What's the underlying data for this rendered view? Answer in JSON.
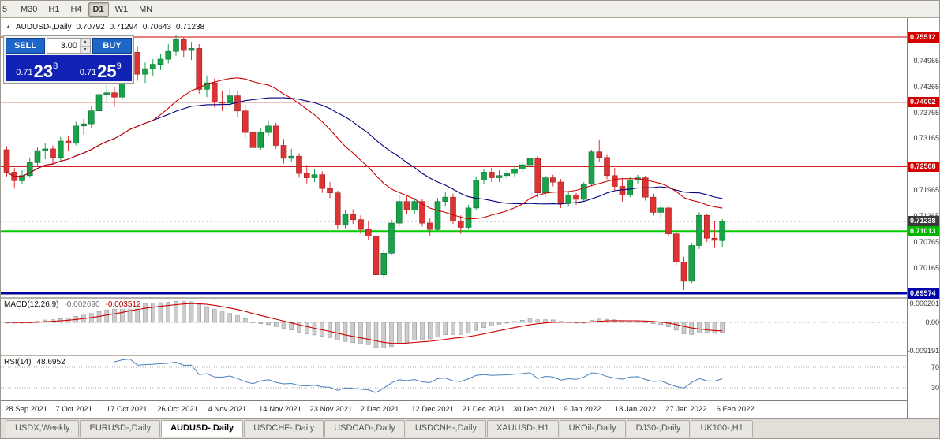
{
  "toolbar": {
    "timeframes": [
      "5",
      "M30",
      "H1",
      "H4",
      "D1",
      "W1",
      "MN"
    ],
    "active": "D1"
  },
  "chart_header": {
    "symbol": "AUDUSD-,Daily",
    "open": "0.70792",
    "high": "0.71294",
    "low": "0.70643",
    "close": "0.71238"
  },
  "trade_panel": {
    "sell_label": "SELL",
    "buy_label": "BUY",
    "volume": "3.00",
    "sell_price": {
      "prefix": "0.71",
      "big": "23",
      "sup": "8"
    },
    "buy_price": {
      "prefix": "0.71",
      "big": "25",
      "sup": "9"
    }
  },
  "indicators": {
    "macd_name": "MACD(12,26,9)",
    "macd_values": [
      "-0.002690",
      "-0.003512"
    ],
    "macd_axis": [
      "0.006201",
      "0.00",
      "-0.009191"
    ],
    "rsi_name": "RSI(14)",
    "rsi_value": "48.6952",
    "rsi_axis": [
      "70",
      "30"
    ]
  },
  "price_axis": {
    "ticks": [
      "0.74965",
      "0.74365",
      "0.73765",
      "0.73165",
      "0.71965",
      "0.71365",
      "0.70765",
      "0.70165"
    ],
    "badges": [
      {
        "value": "0.75512",
        "color": "#d40000"
      },
      {
        "value": "0.74002",
        "color": "#d40000"
      },
      {
        "value": "0.72508",
        "color": "#d40000"
      },
      {
        "value": "0.71238",
        "color": "#3a3a3a"
      },
      {
        "value": "0.71013",
        "color": "#00b400"
      },
      {
        "value": "0.69574",
        "color": "#0000a8"
      }
    ]
  },
  "date_axis": [
    "28 Sep 2021",
    "7 Oct 2021",
    "17 Oct 2021",
    "26 Oct 2021",
    "4 Nov 2021",
    "14 Nov 2021",
    "23 Nov 2021",
    "2 Dec 2021",
    "12 Dec 2021",
    "21 Dec 2021",
    "30 Dec 2021",
    "9 Jan 2022",
    "18 Jan 2022",
    "27 Jan 2022",
    "6 Feb 2022"
  ],
  "tab_bar": {
    "tabs": [
      "USDX,Weekly",
      "EURUSD-,Daily",
      "AUDUSD-,Daily",
      "USDCHF-,Daily",
      "USDCAD-,Daily",
      "USDCNH-,Daily",
      "XAUUSD-,H1",
      "UKOil-,Daily",
      "DJ30-,Daily",
      "UK100-,H1"
    ],
    "active": "AUDUSD-,Daily"
  },
  "chart_data": {
    "type": "candlestick",
    "symbol": "AUDUSD",
    "timeframe": "Daily",
    "title": "AUDUSD-,Daily",
    "current_price": 0.71238,
    "ohlc_current": {
      "open": 0.70792,
      "high": 0.71294,
      "low": 0.70643,
      "close": 0.71238
    },
    "ylim": [
      0.694,
      0.7595
    ],
    "hlines": [
      {
        "price": 0.75512,
        "color": "#cc0000",
        "width": 1
      },
      {
        "price": 0.74002,
        "color": "#cc0000",
        "width": 1
      },
      {
        "price": 0.72508,
        "color": "#cc0000",
        "width": 1
      },
      {
        "price": 0.71013,
        "color": "#00cc00",
        "width": 2
      },
      {
        "price": 0.69574,
        "color": "#0000a0",
        "width": 3
      }
    ],
    "ma_fast_period": 20,
    "ma_slow_period": 30,
    "indicators": [
      {
        "name": "MACD",
        "params": [
          12,
          26,
          9
        ],
        "values": [
          -0.00269,
          -0.003512
        ],
        "axis_range": [
          0.006201,
          -0.009191
        ]
      },
      {
        "name": "RSI",
        "params": [
          14
        ],
        "value": 48.6952,
        "levels": [
          70,
          30
        ]
      }
    ],
    "colors": {
      "up": "#18a348",
      "down": "#dd3333",
      "ma_fast": "#cc0000",
      "ma_slow": "#000080",
      "macd_hist": "#cccccc",
      "macd_signal": "#cc0000",
      "rsi_line": "#4a7ebb"
    },
    "candles": [
      [
        0.729,
        0.7298,
        0.7228,
        0.7238
      ],
      [
        0.7238,
        0.7248,
        0.72,
        0.7218
      ],
      [
        0.7218,
        0.7242,
        0.721,
        0.723
      ],
      [
        0.723,
        0.7272,
        0.7225,
        0.726
      ],
      [
        0.726,
        0.7295,
        0.7252,
        0.7288
      ],
      [
        0.7288,
        0.7305,
        0.7268,
        0.7292
      ],
      [
        0.7292,
        0.73,
        0.7255,
        0.7272
      ],
      [
        0.7272,
        0.732,
        0.7265,
        0.731
      ],
      [
        0.731,
        0.7322,
        0.7288,
        0.7305
      ],
      [
        0.7305,
        0.7355,
        0.73,
        0.7345
      ],
      [
        0.7345,
        0.7362,
        0.7325,
        0.735
      ],
      [
        0.735,
        0.7392,
        0.734,
        0.738
      ],
      [
        0.738,
        0.743,
        0.7372,
        0.7418
      ],
      [
        0.7418,
        0.744,
        0.74,
        0.7422
      ],
      [
        0.7422,
        0.7435,
        0.739,
        0.7412
      ],
      [
        0.7412,
        0.7485,
        0.7405,
        0.7476
      ],
      [
        0.7476,
        0.7525,
        0.747,
        0.7516
      ],
      [
        0.7516,
        0.753,
        0.745,
        0.7465
      ],
      [
        0.7465,
        0.7492,
        0.7445,
        0.7478
      ],
      [
        0.7478,
        0.75,
        0.7462,
        0.7488
      ],
      [
        0.7488,
        0.7512,
        0.7475,
        0.75
      ],
      [
        0.75,
        0.7535,
        0.749,
        0.7518
      ],
      [
        0.7518,
        0.7555,
        0.7508,
        0.7545
      ],
      [
        0.7545,
        0.7552,
        0.7505,
        0.752
      ],
      [
        0.752,
        0.754,
        0.7498,
        0.7525
      ],
      [
        0.7525,
        0.7535,
        0.742,
        0.743
      ],
      [
        0.743,
        0.7462,
        0.7412,
        0.7445
      ],
      [
        0.7445,
        0.7455,
        0.7388,
        0.74
      ],
      [
        0.74,
        0.7425,
        0.738,
        0.7398
      ],
      [
        0.7398,
        0.7432,
        0.739,
        0.7415
      ],
      [
        0.7415,
        0.7428,
        0.7365,
        0.738
      ],
      [
        0.738,
        0.7395,
        0.7318,
        0.733
      ],
      [
        0.733,
        0.7345,
        0.7288,
        0.7295
      ],
      [
        0.7295,
        0.734,
        0.729,
        0.733
      ],
      [
        0.733,
        0.7358,
        0.7322,
        0.7345
      ],
      [
        0.7345,
        0.7352,
        0.7292,
        0.73
      ],
      [
        0.73,
        0.7315,
        0.7258,
        0.727
      ],
      [
        0.727,
        0.7292,
        0.7262,
        0.7275
      ],
      [
        0.7275,
        0.7282,
        0.7225,
        0.7235
      ],
      [
        0.7235,
        0.7255,
        0.7212,
        0.7225
      ],
      [
        0.7225,
        0.7245,
        0.7215,
        0.7232
      ],
      [
        0.7232,
        0.724,
        0.719,
        0.72
      ],
      [
        0.72,
        0.7215,
        0.7178,
        0.719
      ],
      [
        0.719,
        0.7195,
        0.7105,
        0.7115
      ],
      [
        0.7115,
        0.715,
        0.7108,
        0.714
      ],
      [
        0.714,
        0.7152,
        0.7118,
        0.7128
      ],
      [
        0.7128,
        0.7138,
        0.7095,
        0.7105
      ],
      [
        0.7105,
        0.7125,
        0.708,
        0.709
      ],
      [
        0.709,
        0.7095,
        0.6995,
        0.7
      ],
      [
        0.7,
        0.7058,
        0.6992,
        0.705
      ],
      [
        0.705,
        0.7128,
        0.7045,
        0.712
      ],
      [
        0.712,
        0.7185,
        0.7112,
        0.717
      ],
      [
        0.717,
        0.7182,
        0.714,
        0.715
      ],
      [
        0.715,
        0.7178,
        0.7142,
        0.717
      ],
      [
        0.717,
        0.7175,
        0.7112,
        0.712
      ],
      [
        0.712,
        0.7132,
        0.709,
        0.7105
      ],
      [
        0.7105,
        0.7178,
        0.71,
        0.717
      ],
      [
        0.717,
        0.7192,
        0.7158,
        0.718
      ],
      [
        0.718,
        0.7188,
        0.7118,
        0.7125
      ],
      [
        0.7125,
        0.7138,
        0.7095,
        0.711
      ],
      [
        0.711,
        0.7162,
        0.7105,
        0.7155
      ],
      [
        0.7155,
        0.7228,
        0.715,
        0.722
      ],
      [
        0.722,
        0.7245,
        0.721,
        0.7238
      ],
      [
        0.7238,
        0.7248,
        0.7215,
        0.7225
      ],
      [
        0.7225,
        0.7242,
        0.7215,
        0.723
      ],
      [
        0.723,
        0.7242,
        0.7222,
        0.7235
      ],
      [
        0.7235,
        0.7252,
        0.7228,
        0.7245
      ],
      [
        0.7245,
        0.7262,
        0.7238,
        0.7255
      ],
      [
        0.7255,
        0.7278,
        0.7248,
        0.727
      ],
      [
        0.727,
        0.7275,
        0.718,
        0.719
      ],
      [
        0.719,
        0.723,
        0.7182,
        0.7225
      ],
      [
        0.7225,
        0.7232,
        0.7205,
        0.7215
      ],
      [
        0.7215,
        0.7222,
        0.7155,
        0.7165
      ],
      [
        0.7165,
        0.7192,
        0.7158,
        0.7185
      ],
      [
        0.7185,
        0.719,
        0.7162,
        0.7175
      ],
      [
        0.7175,
        0.7215,
        0.717,
        0.721
      ],
      [
        0.721,
        0.729,
        0.7205,
        0.7285
      ],
      [
        0.7285,
        0.7314,
        0.7262,
        0.7272
      ],
      [
        0.7272,
        0.7278,
        0.7222,
        0.723
      ],
      [
        0.723,
        0.7248,
        0.7195,
        0.7205
      ],
      [
        0.7205,
        0.7222,
        0.717,
        0.7185
      ],
      [
        0.7185,
        0.7228,
        0.718,
        0.722
      ],
      [
        0.722,
        0.7232,
        0.7212,
        0.7225
      ],
      [
        0.7225,
        0.723,
        0.7172,
        0.718
      ],
      [
        0.718,
        0.7188,
        0.7138,
        0.7145
      ],
      [
        0.7145,
        0.7162,
        0.713,
        0.7155
      ],
      [
        0.7155,
        0.7158,
        0.7088,
        0.7095
      ],
      [
        0.7095,
        0.71,
        0.7022,
        0.703
      ],
      [
        0.703,
        0.7042,
        0.6965,
        0.6985
      ],
      [
        0.6985,
        0.7075,
        0.698,
        0.7068
      ],
      [
        0.7068,
        0.7145,
        0.706,
        0.7138
      ],
      [
        0.7138,
        0.7142,
        0.7076,
        0.7085
      ],
      [
        0.7085,
        0.7125,
        0.7062,
        0.708
      ],
      [
        0.70792,
        0.71294,
        0.70643,
        0.71238
      ]
    ]
  }
}
